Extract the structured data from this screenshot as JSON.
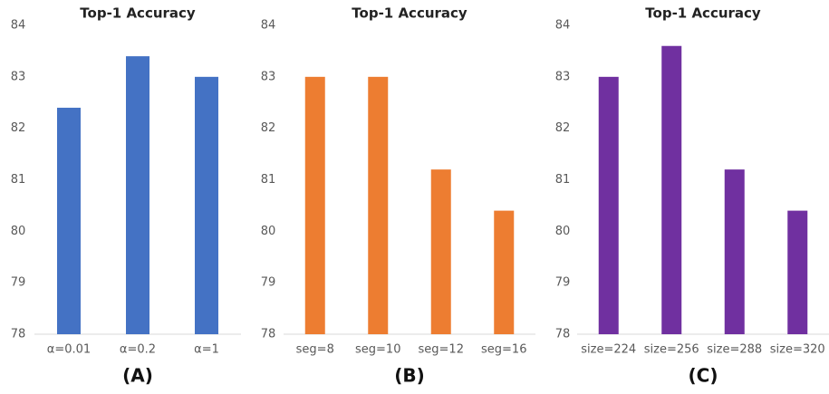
{
  "chart_data": [
    {
      "type": "bar",
      "title": "Top-1 Accuracy",
      "caption": "(A)",
      "categories": [
        "α=0.01",
        "α=0.2",
        "α=1"
      ],
      "values": [
        82.4,
        83.4,
        83.0
      ],
      "color": "#4472c4",
      "ylim": [
        78,
        84
      ],
      "yticks": [
        78,
        79,
        80,
        81,
        82,
        83,
        84
      ],
      "grid": false
    },
    {
      "type": "bar",
      "title": "Top-1 Accuracy",
      "caption": "(B)",
      "categories": [
        "seg=8",
        "seg=10",
        "seg=12",
        "seg=16"
      ],
      "values": [
        83.0,
        83.0,
        81.2,
        80.4
      ],
      "color": "#ed7d31",
      "ylim": [
        78,
        84
      ],
      "yticks": [
        78,
        79,
        80,
        81,
        82,
        83,
        84
      ],
      "grid": false
    },
    {
      "type": "bar",
      "title": "Top-1 Accuracy",
      "caption": "(C)",
      "categories": [
        "size=224",
        "size=256",
        "size=288",
        "size=320"
      ],
      "values": [
        83.0,
        83.6,
        81.2,
        80.4
      ],
      "color": "#7030a0",
      "ylim": [
        78,
        84
      ],
      "yticks": [
        78,
        79,
        80,
        81,
        82,
        83,
        84
      ],
      "grid": false
    }
  ]
}
